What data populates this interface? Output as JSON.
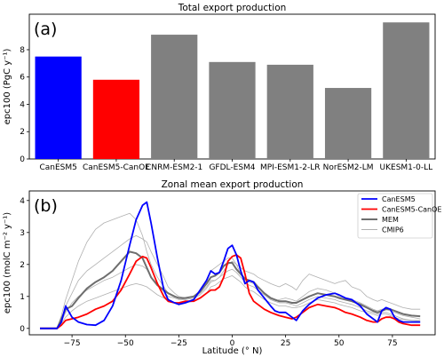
{
  "chart_data": [
    {
      "type": "bar",
      "panel_label": "(a)",
      "title": "Total export production",
      "xlabel": "",
      "ylabel": "epc100 (PgC y⁻¹)",
      "ylim": [
        0,
        10.6
      ],
      "yticks": [
        0,
        2,
        4,
        6,
        8
      ],
      "categories": [
        "CanESM5",
        "CanESM5-CanOE",
        "CNRM-ESM2-1",
        "GFDL-ESM4",
        "MPI-ESM1-2-LR",
        "NorESM2-LM",
        "UKESM1-0-LL"
      ],
      "values": [
        7.5,
        5.8,
        9.1,
        7.1,
        6.9,
        5.2,
        10.0
      ],
      "colors": [
        "#0000ff",
        "#ff0000",
        "#808080",
        "#808080",
        "#808080",
        "#808080",
        "#808080"
      ],
      "grid": false
    },
    {
      "type": "line",
      "panel_label": "(b)",
      "title": "Zonal mean export production",
      "xlabel": "Latitude (° N)",
      "ylabel": "epc100 (molC m⁻² y⁻¹)",
      "xlim": [
        -95,
        95
      ],
      "ylim": [
        -0.2,
        4.3
      ],
      "xticks": [
        -75,
        -50,
        -25,
        0,
        25,
        50,
        75
      ],
      "yticks": [
        0,
        1,
        2,
        3,
        4
      ],
      "legend_position": "top-right",
      "grid": false,
      "series": [
        {
          "name": "CanESM5",
          "color": "#0000ff",
          "width": 1.8,
          "x": [
            -90,
            -82,
            -80,
            -78,
            -75,
            -72,
            -68,
            -64,
            -60,
            -56,
            -52,
            -48,
            -45,
            -42,
            -40,
            -38,
            -35,
            -32,
            -30,
            -27,
            -25,
            -22,
            -18,
            -15,
            -12,
            -10,
            -8,
            -6,
            -4,
            -2,
            0,
            2,
            4,
            6,
            8,
            10,
            12,
            15,
            18,
            20,
            22,
            25,
            28,
            30,
            33,
            36,
            40,
            44,
            48,
            50,
            53,
            56,
            60,
            63,
            66,
            68,
            70,
            72,
            74,
            76,
            78,
            80,
            84,
            88
          ],
          "y": [
            0,
            0,
            0.2,
            0.7,
            0.35,
            0.2,
            0.12,
            0.1,
            0.25,
            0.7,
            1.5,
            2.6,
            3.4,
            3.85,
            3.95,
            3.3,
            2.2,
            1.2,
            0.9,
            0.8,
            0.75,
            0.8,
            0.9,
            1.2,
            1.5,
            1.8,
            1.7,
            1.75,
            2.1,
            2.5,
            2.6,
            2.3,
            1.8,
            1.4,
            1.5,
            1.45,
            1.2,
            0.95,
            0.7,
            0.55,
            0.5,
            0.5,
            0.35,
            0.25,
            0.55,
            0.75,
            0.95,
            1.05,
            1.1,
            1.05,
            0.95,
            0.9,
            0.7,
            0.45,
            0.3,
            0.2,
            0.55,
            0.65,
            0.6,
            0.35,
            0.25,
            0.2,
            0.2,
            0.2
          ]
        },
        {
          "name": "CanESM5-CanOE",
          "color": "#ff0000",
          "width": 1.8,
          "x": [
            -90,
            -82,
            -80,
            -78,
            -75,
            -72,
            -68,
            -64,
            -60,
            -56,
            -52,
            -48,
            -45,
            -42,
            -40,
            -38,
            -35,
            -32,
            -30,
            -27,
            -25,
            -22,
            -18,
            -15,
            -12,
            -10,
            -8,
            -6,
            -4,
            -2,
            0,
            2,
            4,
            6,
            8,
            10,
            12,
            15,
            18,
            20,
            22,
            25,
            28,
            30,
            33,
            36,
            40,
            44,
            48,
            50,
            53,
            56,
            60,
            63,
            66,
            68,
            70,
            72,
            74,
            76,
            78,
            80,
            84,
            88
          ],
          "y": [
            0,
            0,
            0.1,
            0.25,
            0.3,
            0.35,
            0.45,
            0.6,
            0.7,
            0.85,
            1.2,
            1.7,
            2.1,
            2.25,
            2.2,
            1.9,
            1.4,
            1.0,
            0.85,
            0.8,
            0.8,
            0.85,
            0.85,
            0.95,
            1.1,
            1.2,
            1.2,
            1.3,
            1.6,
            2.1,
            2.25,
            2.3,
            2.2,
            1.7,
            1.1,
            0.85,
            0.75,
            0.6,
            0.5,
            0.45,
            0.4,
            0.35,
            0.3,
            0.35,
            0.5,
            0.65,
            0.75,
            0.7,
            0.65,
            0.6,
            0.5,
            0.45,
            0.35,
            0.25,
            0.2,
            0.2,
            0.3,
            0.35,
            0.35,
            0.3,
            0.2,
            0.15,
            0.1,
            0.1
          ]
        },
        {
          "name": "MEM",
          "color": "#6e6e6e",
          "width": 2.0,
          "x": [
            -90,
            -82,
            -80,
            -78,
            -75,
            -72,
            -68,
            -64,
            -60,
            -56,
            -52,
            -48,
            -45,
            -42,
            -40,
            -38,
            -35,
            -32,
            -30,
            -27,
            -25,
            -22,
            -18,
            -15,
            -12,
            -10,
            -8,
            -6,
            -4,
            -2,
            0,
            2,
            4,
            6,
            8,
            10,
            12,
            15,
            18,
            20,
            22,
            25,
            28,
            30,
            33,
            36,
            40,
            44,
            48,
            50,
            53,
            56,
            60,
            63,
            66,
            68,
            70,
            72,
            74,
            76,
            78,
            80,
            84,
            88
          ],
          "y": [
            0,
            0,
            0.3,
            0.6,
            0.7,
            0.95,
            1.25,
            1.45,
            1.6,
            1.8,
            2.1,
            2.4,
            2.35,
            2.2,
            1.9,
            1.6,
            1.35,
            1.2,
            1.1,
            1.0,
            0.95,
            0.95,
            1.0,
            1.15,
            1.4,
            1.6,
            1.65,
            1.75,
            1.95,
            2.05,
            2.05,
            1.85,
            1.7,
            1.55,
            1.5,
            1.45,
            1.3,
            1.1,
            0.95,
            0.9,
            0.85,
            0.85,
            0.8,
            0.8,
            0.9,
            1.0,
            1.1,
            1.05,
            1.0,
            0.95,
            0.9,
            0.85,
            0.75,
            0.65,
            0.55,
            0.5,
            0.55,
            0.6,
            0.6,
            0.55,
            0.5,
            0.45,
            0.4,
            0.38
          ]
        },
        {
          "name": "CMIP6",
          "color": "#b0b0b0",
          "width": 0.8,
          "x": [
            -90,
            -82,
            -80,
            -78,
            -75,
            -72,
            -68,
            -64,
            -60,
            -56,
            -52,
            -48,
            -45,
            -42,
            -40,
            -38,
            -35,
            -32,
            -30,
            -27,
            -25,
            -22,
            -18,
            -15,
            -12,
            -10,
            -8,
            -6,
            -4,
            -2,
            0,
            2,
            4,
            6,
            8,
            10,
            12,
            15,
            18,
            20,
            22,
            25,
            28,
            30,
            33,
            36,
            40,
            44,
            48,
            50,
            53,
            56,
            60,
            63,
            66,
            68,
            70,
            72,
            74,
            76,
            78,
            80,
            84,
            88
          ],
          "y": [
            0,
            0,
            0.4,
            0.9,
            1.5,
            2.1,
            2.7,
            3.1,
            3.3,
            3.4,
            3.5,
            3.6,
            3.4,
            2.9,
            2.4,
            2.0,
            1.6,
            1.3,
            1.1,
            1.0,
            0.95,
            0.9,
            0.95,
            1.1,
            1.3,
            1.5,
            1.5,
            1.6,
            1.8,
            2.0,
            2.1,
            2.0,
            1.9,
            1.8,
            1.75,
            1.7,
            1.6,
            1.5,
            1.4,
            1.35,
            1.3,
            1.4,
            1.3,
            1.2,
            1.5,
            1.7,
            1.6,
            1.5,
            1.4,
            1.45,
            1.5,
            1.3,
            1.2,
            1.0,
            0.9,
            0.85,
            0.9,
            0.85,
            0.8,
            0.75,
            0.7,
            0.65,
            0.6,
            0.6
          ]
        },
        {
          "name": "",
          "color": "#b0b0b0",
          "width": 0.8,
          "x": [
            -90,
            -82,
            -80,
            -78,
            -75,
            -72,
            -68,
            -64,
            -60,
            -56,
            -52,
            -48,
            -45,
            -42,
            -40,
            -38,
            -35,
            -32,
            -30,
            -27,
            -25,
            -22,
            -18,
            -15,
            -12,
            -10,
            -8,
            -6,
            -4,
            -2,
            0,
            2,
            4,
            6,
            8,
            10,
            12,
            15,
            18,
            20,
            22,
            25,
            28,
            30,
            33,
            36,
            40,
            44,
            48,
            50,
            53,
            56,
            60,
            63,
            66,
            68,
            70,
            72,
            74,
            76,
            78,
            80,
            84,
            88
          ],
          "y": [
            0,
            0,
            0.3,
            0.7,
            1.1,
            1.5,
            1.8,
            2.0,
            2.2,
            2.4,
            2.6,
            2.8,
            2.9,
            2.8,
            2.7,
            2.4,
            2.0,
            1.6,
            1.3,
            1.1,
            1.0,
            0.95,
            1.0,
            1.2,
            1.45,
            1.8,
            1.9,
            2.0,
            2.1,
            2.2,
            2.2,
            2.0,
            1.7,
            1.5,
            1.45,
            1.4,
            1.3,
            1.1,
            0.9,
            0.85,
            0.9,
            0.95,
            0.9,
            0.85,
            1.0,
            1.15,
            1.25,
            1.2,
            1.1,
            1.0,
            0.95,
            0.9,
            0.8,
            0.7,
            0.6,
            0.55,
            0.6,
            0.6,
            0.55,
            0.5,
            0.45,
            0.4,
            0.35,
            0.3
          ]
        },
        {
          "name": "",
          "color": "#b0b0b0",
          "width": 0.8,
          "x": [
            -90,
            -82,
            -80,
            -78,
            -75,
            -72,
            -68,
            -64,
            -60,
            -56,
            -52,
            -48,
            -45,
            -42,
            -40,
            -38,
            -35,
            -32,
            -30,
            -27,
            -25,
            -22,
            -18,
            -15,
            -12,
            -10,
            -8,
            -6,
            -4,
            -2,
            0,
            2,
            4,
            6,
            8,
            10,
            12,
            15,
            18,
            20,
            22,
            25,
            28,
            30,
            33,
            36,
            40,
            44,
            48,
            50,
            53,
            56,
            60,
            63,
            66,
            68,
            70,
            72,
            74,
            76,
            78,
            80,
            84,
            88
          ],
          "y": [
            0,
            0,
            0.2,
            0.5,
            0.8,
            1.0,
            1.2,
            1.35,
            1.5,
            1.6,
            1.75,
            1.9,
            2.0,
            1.95,
            1.85,
            1.6,
            1.35,
            1.15,
            1.0,
            0.95,
            0.9,
            0.9,
            0.95,
            1.05,
            1.25,
            1.45,
            1.5,
            1.6,
            1.7,
            1.8,
            1.85,
            1.75,
            1.6,
            1.45,
            1.35,
            1.3,
            1.2,
            1.05,
            0.9,
            0.85,
            0.8,
            0.8,
            0.75,
            0.7,
            0.8,
            0.9,
            1.0,
            0.95,
            0.9,
            0.85,
            0.8,
            0.75,
            0.65,
            0.55,
            0.5,
            0.45,
            0.5,
            0.5,
            0.45,
            0.4,
            0.35,
            0.3,
            0.25,
            0.25
          ]
        },
        {
          "name": "",
          "color": "#b0b0b0",
          "width": 0.8,
          "x": [
            -90,
            -82,
            -80,
            -78,
            -75,
            -72,
            -68,
            -64,
            -60,
            -56,
            -52,
            -48,
            -45,
            -42,
            -40,
            -38,
            -35,
            -32,
            -30,
            -27,
            -25,
            -22,
            -18,
            -15,
            -12,
            -10,
            -8,
            -6,
            -4,
            -2,
            0,
            2,
            4,
            6,
            8,
            10,
            12,
            15,
            18,
            20,
            22,
            25,
            28,
            30,
            33,
            36,
            40,
            44,
            48,
            50,
            53,
            56,
            60,
            63,
            66,
            68,
            70,
            72,
            74,
            76,
            78,
            80,
            84,
            88
          ],
          "y": [
            0,
            0,
            0.15,
            0.35,
            0.55,
            0.7,
            0.85,
            0.95,
            1.05,
            1.15,
            1.25,
            1.35,
            1.4,
            1.35,
            1.3,
            1.2,
            1.05,
            0.95,
            0.85,
            0.8,
            0.8,
            0.8,
            0.85,
            0.95,
            1.1,
            1.3,
            1.35,
            1.45,
            1.55,
            1.6,
            1.65,
            1.55,
            1.45,
            1.3,
            1.2,
            1.15,
            1.05,
            0.9,
            0.8,
            0.75,
            0.7,
            0.7,
            0.65,
            0.65,
            0.7,
            0.8,
            0.9,
            0.85,
            0.8,
            0.75,
            0.7,
            0.65,
            0.55,
            0.5,
            0.45,
            0.4,
            0.45,
            0.45,
            0.4,
            0.35,
            0.3,
            0.28,
            0.25,
            0.22
          ]
        }
      ]
    }
  ]
}
